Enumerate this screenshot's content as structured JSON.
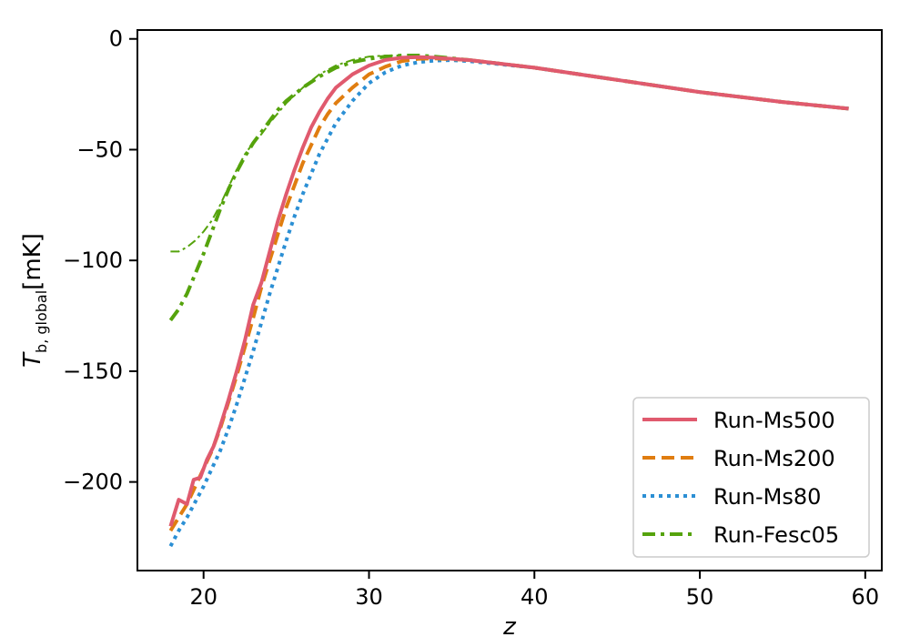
{
  "chart_data": {
    "type": "line",
    "title": "",
    "xlabel": "z",
    "ylabel": "T_b, global [mK]",
    "ylabel_parts": {
      "main": "T",
      "sub": "b, global",
      "unit": "[mK]"
    },
    "xlim": [
      16,
      61
    ],
    "ylim": [
      -240,
      4
    ],
    "xticks": [
      20,
      30,
      40,
      50,
      60
    ],
    "yticks": [
      0,
      -50,
      -100,
      -150,
      -200
    ],
    "ytick_labels": [
      "0",
      "−50",
      "−100",
      "−150",
      "−200"
    ],
    "grid": false,
    "legend_position": "lower-right",
    "series": [
      {
        "name": "Run-Ms500",
        "color": "#e05a6e",
        "style": "solid",
        "x": [
          18.0,
          18.5,
          19.0,
          19.4,
          19.8,
          20.2,
          20.6,
          21.0,
          21.5,
          22.0,
          22.5,
          23.0,
          23.5,
          24.0,
          24.5,
          25.0,
          25.5,
          26.0,
          26.5,
          27.0,
          27.5,
          28.0,
          29.0,
          30.0,
          31.0,
          32.0,
          33.0,
          34.0,
          36.0,
          40.0,
          45.0,
          50.0,
          55.0,
          59.0
        ],
        "y": [
          -220,
          -208,
          -210,
          -199,
          -198,
          -190,
          -184,
          -175,
          -163,
          -150,
          -136,
          -120,
          -110,
          -96,
          -82,
          -70,
          -59,
          -49,
          -40,
          -33,
          -27,
          -22,
          -16,
          -12,
          -9.5,
          -8.5,
          -8.2,
          -8.5,
          -9.5,
          -13,
          -18.5,
          -24,
          -28.5,
          -31.5
        ]
      },
      {
        "name": "Run-Ms200",
        "color": "#e07d10",
        "style": "dashed",
        "x": [
          18.0,
          18.5,
          19.0,
          19.5,
          20.0,
          20.5,
          21.0,
          21.5,
          22.0,
          22.5,
          23.0,
          23.5,
          24.0,
          24.5,
          25.0,
          25.5,
          26.0,
          26.5,
          27.0,
          27.5,
          28.0,
          29.0,
          30.0,
          31.0,
          32.0,
          33.0,
          34.0,
          36.0,
          40.0,
          45.0,
          50.0,
          55.0,
          59.0
        ],
        "y": [
          -222,
          -216,
          -210,
          -202,
          -194,
          -186,
          -176,
          -164,
          -152,
          -139,
          -126,
          -112,
          -100,
          -88,
          -76,
          -66,
          -56,
          -48,
          -40,
          -34,
          -29,
          -22,
          -16,
          -12.5,
          -10,
          -9,
          -8.8,
          -9.5,
          -13,
          -18.5,
          -24,
          -28.5,
          -31.5
        ]
      },
      {
        "name": "Run-Ms80",
        "color": "#2b8fd4",
        "style": "dotted",
        "x": [
          18.0,
          18.5,
          19.0,
          19.5,
          20.0,
          20.5,
          21.0,
          21.5,
          22.0,
          22.5,
          23.0,
          23.5,
          24.0,
          24.5,
          25.0,
          25.5,
          26.0,
          26.5,
          27.0,
          27.5,
          28.0,
          29.0,
          30.0,
          31.0,
          32.0,
          33.0,
          34.0,
          35.0,
          36.0,
          40.0,
          45.0,
          50.0,
          55.0,
          59.0
        ],
        "y": [
          -229,
          -222,
          -216,
          -209,
          -202,
          -194,
          -186,
          -176,
          -165,
          -153,
          -141,
          -128,
          -115,
          -103,
          -91,
          -80,
          -70,
          -61,
          -52,
          -45,
          -38,
          -28,
          -20,
          -15,
          -12,
          -10.5,
          -9.8,
          -9.6,
          -10,
          -13,
          -18.5,
          -24,
          -28.5,
          -31.5
        ]
      },
      {
        "name": "Run-Fesc05",
        "color": "#55a30c",
        "style": "dashdot",
        "x": [
          18.0,
          18.5,
          19.0,
          19.5,
          20.0,
          20.5,
          21.0,
          21.5,
          22.0,
          22.5,
          23.0,
          23.5,
          24.0,
          24.5,
          25.0,
          25.5,
          26.0,
          27.0,
          28.0,
          29.0,
          30.0,
          31.0,
          32.0,
          33.0,
          34.0,
          36.0,
          40.0,
          45.0,
          50.0,
          55.0,
          59.0
        ],
        "y": [
          -127,
          -122,
          -115,
          -106,
          -97,
          -87,
          -77,
          -68,
          -60,
          -53,
          -47,
          -42,
          -37,
          -32,
          -28,
          -25,
          -22,
          -17,
          -13,
          -10.5,
          -9,
          -8,
          -7.5,
          -7.5,
          -8,
          -9.5,
          -13,
          -18.5,
          -24,
          -28.5,
          -31.5
        ]
      },
      {
        "name": "",
        "color": "#55a30c",
        "style": "thin-dashdot",
        "x": [
          18.0,
          18.5,
          19.0,
          19.5,
          20.0,
          20.5,
          21.0,
          21.5,
          22.0,
          22.5,
          23.0,
          23.5,
          24.0,
          25.0,
          26.0,
          27.0,
          28.0,
          29.0,
          30.0,
          31.0,
          32.0
        ],
        "y": [
          -96,
          -96,
          -94,
          -91,
          -87,
          -82,
          -75,
          -67,
          -59,
          -52,
          -47,
          -43,
          -38,
          -29,
          -22,
          -16,
          -12,
          -9.5,
          -8,
          -7.5,
          -7.5
        ]
      }
    ]
  }
}
